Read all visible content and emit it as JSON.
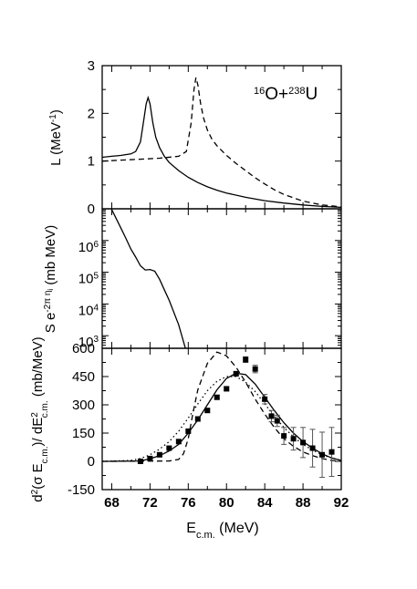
{
  "chart_data": [
    {
      "id": "top",
      "type": "line",
      "ylabel_main": "L (MeV",
      "ylabel_sup": "-1",
      "ylabel_end": ")",
      "annotation": {
        "sup1": "16",
        "base1": "O+",
        "sup2": "238",
        "base2": "U"
      },
      "xlim": [
        67,
        92
      ],
      "ylim": [
        0,
        3
      ],
      "yticks": [
        0,
        1,
        2,
        3
      ],
      "series": [
        {
          "style": "solid",
          "x": [
            67,
            68,
            69,
            70,
            70.5,
            71,
            71.3,
            71.6,
            71.8,
            72.0,
            72.3,
            72.6,
            73,
            73.5,
            74,
            75,
            76,
            77,
            78,
            79,
            80,
            82,
            84,
            86,
            88,
            90,
            92
          ],
          "y": [
            1.08,
            1.1,
            1.12,
            1.15,
            1.2,
            1.4,
            1.8,
            2.2,
            2.33,
            2.2,
            1.8,
            1.5,
            1.28,
            1.1,
            0.97,
            0.8,
            0.66,
            0.55,
            0.46,
            0.39,
            0.33,
            0.24,
            0.17,
            0.12,
            0.08,
            0.05,
            0.03
          ]
        },
        {
          "style": "dashed",
          "x": [
            67,
            69,
            71,
            73,
            75,
            75.8,
            76.3,
            76.6,
            76.8,
            77.0,
            77.3,
            77.6,
            78,
            78.5,
            79,
            80,
            81,
            82,
            83,
            84,
            85,
            86,
            88,
            90,
            92
          ],
          "y": [
            1.0,
            1.02,
            1.04,
            1.06,
            1.1,
            1.2,
            1.8,
            2.5,
            2.75,
            2.6,
            2.2,
            1.9,
            1.65,
            1.45,
            1.32,
            1.12,
            0.95,
            0.8,
            0.65,
            0.52,
            0.4,
            0.3,
            0.16,
            0.08,
            0.04
          ]
        }
      ]
    },
    {
      "id": "middle",
      "type": "line",
      "yscale": "log",
      "ylabel_s": "S e",
      "ylabel_exp": "-2π η",
      "ylabel_expsub": "i",
      "ylabel_units": "(mb MeV)",
      "xlim": [
        67,
        92
      ],
      "ylim": [
        400,
        10000000
      ],
      "yticks": [
        {
          "v": 1000,
          "base": "10",
          "exp": "3"
        },
        {
          "v": 10000,
          "base": "10",
          "exp": "4"
        },
        {
          "v": 100000,
          "base": "10",
          "exp": "5"
        },
        {
          "v": 1000000,
          "base": "10",
          "exp": "6"
        }
      ],
      "series": [
        {
          "style": "solid",
          "x": [
            67.95,
            68.5,
            69,
            69.5,
            70,
            70.5,
            71,
            71.5,
            72,
            72.5,
            73,
            73.5,
            74,
            75,
            75.7
          ],
          "y": [
            10000000,
            4700000,
            2300000,
            1130000,
            540000,
            300000,
            160000,
            118000,
            122000,
            108000,
            60000,
            28000,
            13000,
            2200,
            400
          ]
        }
      ]
    },
    {
      "id": "bottom",
      "type": "line",
      "ylabel_a": "d",
      "ylabel_a_sup": "2",
      "ylabel_b": "(σ E",
      "ylabel_b_sub": "c.m.",
      "ylabel_c": ")/ dE",
      "ylabel_c_sup": "2",
      "ylabel_c_sub": "c.m.",
      "ylabel_units": "(mb/MeV)",
      "xlabel_main": "E",
      "xlabel_sub": "c.m.",
      "xlabel_units": "(MeV)",
      "xlim": [
        67,
        92
      ],
      "ylim": [
        -150,
        600
      ],
      "xticks": [
        68,
        72,
        76,
        80,
        84,
        88,
        92
      ],
      "yticks": [
        -150,
        0,
        150,
        300,
        450,
        600
      ],
      "series": [
        {
          "style": "solid",
          "x": [
            67,
            71,
            72,
            73,
            74,
            75,
            76,
            77,
            78,
            79,
            80,
            81,
            82,
            83,
            84,
            85,
            86,
            87,
            88,
            89,
            90,
            91,
            92
          ],
          "y": [
            0,
            2,
            14,
            30,
            55,
            90,
            150,
            220,
            300,
            380,
            440,
            468,
            460,
            410,
            340,
            270,
            205,
            150,
            105,
            70,
            40,
            18,
            5
          ]
        },
        {
          "style": "dashed",
          "x": [
            67,
            74,
            75,
            75.5,
            76,
            76.5,
            77,
            78,
            79,
            80,
            81,
            82,
            83,
            84,
            85,
            86,
            87,
            88,
            89,
            90,
            91,
            92
          ],
          "y": [
            0,
            2,
            10,
            40,
            120,
            260,
            380,
            520,
            580,
            560,
            500,
            420,
            330,
            250,
            180,
            120,
            80,
            50,
            30,
            15,
            5,
            0
          ]
        },
        {
          "style": "dotted",
          "x": [
            67,
            70,
            71,
            72,
            73,
            74,
            75,
            76,
            77,
            78,
            79,
            80,
            81,
            82,
            83,
            84,
            85,
            86,
            87,
            88,
            89,
            90,
            91,
            92
          ],
          "y": [
            0,
            5,
            15,
            35,
            65,
            105,
            160,
            230,
            305,
            375,
            425,
            450,
            450,
            420,
            370,
            305,
            240,
            180,
            130,
            90,
            60,
            35,
            18,
            6
          ]
        }
      ],
      "points": {
        "x": [
          71,
          72,
          73,
          74,
          75,
          76,
          77,
          78,
          79,
          80,
          81,
          82,
          83,
          84,
          84.7,
          85.3,
          86,
          87,
          88,
          89,
          90,
          91
        ],
        "y": [
          0,
          15,
          35,
          70,
          105,
          160,
          225,
          270,
          340,
          385,
          465,
          540,
          490,
          330,
          240,
          215,
          135,
          120,
          100,
          70,
          35,
          50
        ],
        "err": [
          0,
          0,
          0,
          0,
          0,
          0,
          0,
          10,
          10,
          10,
          12,
          15,
          20,
          25,
          30,
          30,
          45,
          60,
          80,
          100,
          120,
          130
        ]
      }
    }
  ]
}
